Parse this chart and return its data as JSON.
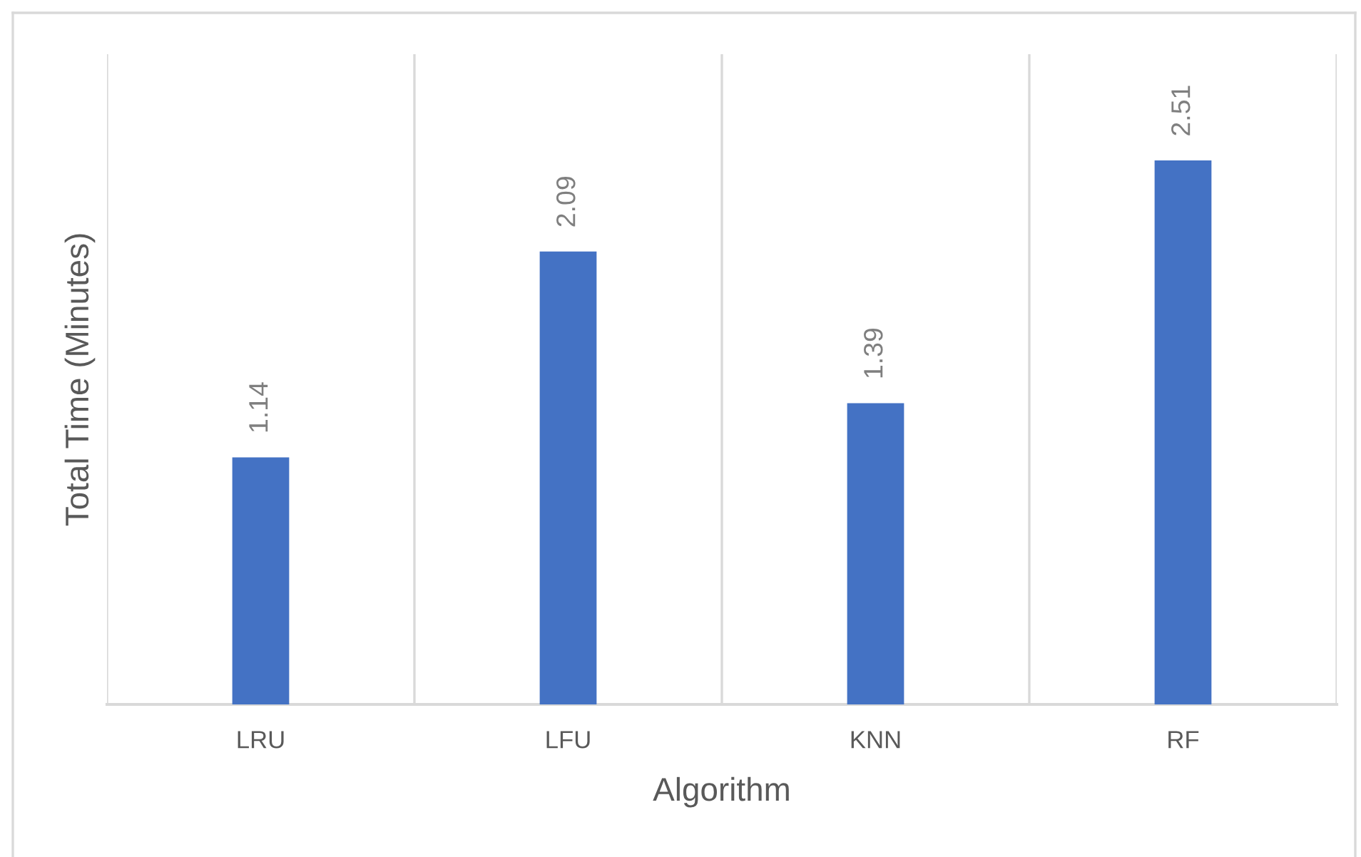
{
  "chart_data": {
    "type": "bar",
    "xlabel": "Algorithm",
    "ylabel": "Total Time (Minutes)",
    "categories": [
      "LRU",
      "LFU",
      "KNN",
      "RF"
    ],
    "values": [
      1.14,
      2.09,
      1.39,
      2.51
    ],
    "color": "#4472c4",
    "ylim": [
      0,
      3
    ],
    "data_labels": true,
    "grid": "x",
    "tick_labels": "x"
  }
}
